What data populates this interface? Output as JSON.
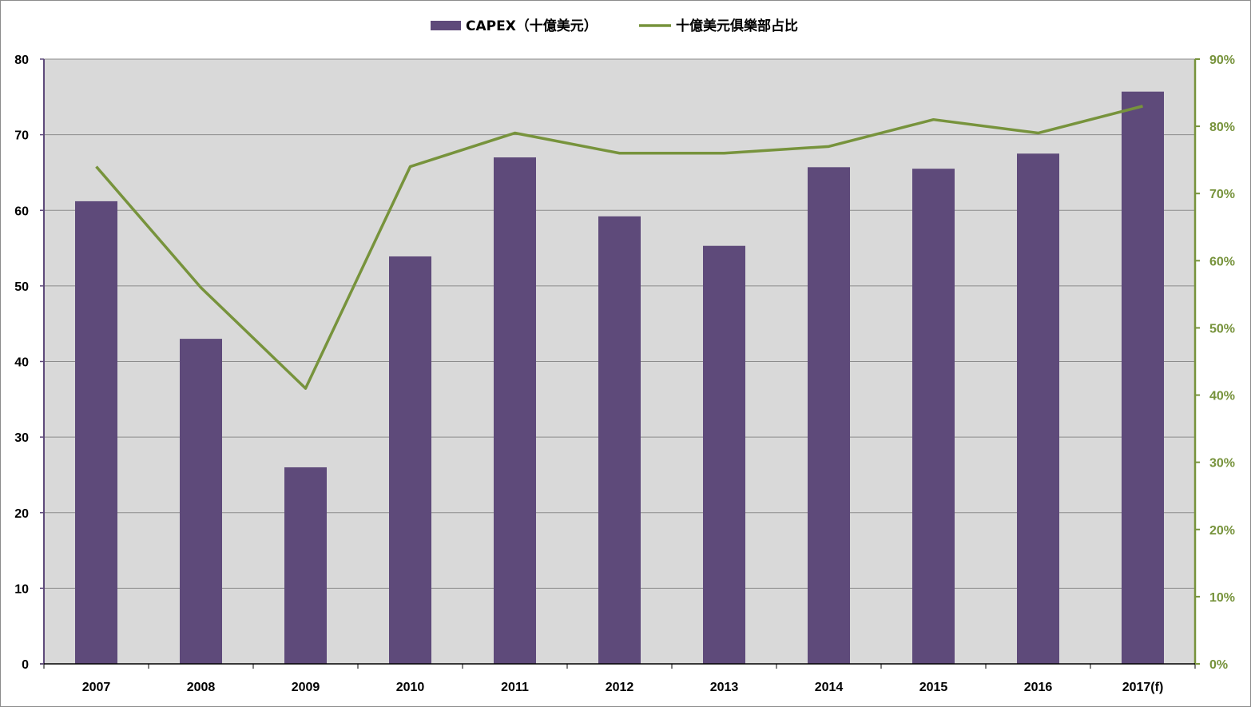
{
  "chart_data": {
    "type": "bar",
    "categories": [
      "2007",
      "2008",
      "2009",
      "2010",
      "2011",
      "2012",
      "2013",
      "2014",
      "2015",
      "2016",
      "2017(f)"
    ],
    "series": [
      {
        "name": "CAPEX（十億美元）",
        "type": "bar",
        "axis": "left",
        "color": "#5e4a7a",
        "values": [
          61.2,
          43.0,
          26.0,
          53.9,
          67.0,
          59.2,
          55.3,
          65.7,
          65.5,
          67.5,
          75.7
        ]
      },
      {
        "name": "十億美元俱樂部占比",
        "type": "line",
        "axis": "right",
        "color": "#77933c",
        "values": [
          0.74,
          0.56,
          0.41,
          0.74,
          0.79,
          0.76,
          0.76,
          0.77,
          0.81,
          0.79,
          0.83
        ]
      }
    ],
    "y_left": {
      "min": 0,
      "max": 80,
      "step": 10,
      "ticks": [
        "0",
        "10",
        "20",
        "30",
        "40",
        "50",
        "60",
        "70",
        "80"
      ]
    },
    "y_right": {
      "min": 0,
      "max": 0.9,
      "step": 0.1,
      "ticks": [
        "0%",
        "10%",
        "20%",
        "30%",
        "40%",
        "50%",
        "60%",
        "70%",
        "80%",
        "90%"
      ]
    },
    "grid": true,
    "plot_background": "#d9d9d9",
    "grid_color": "#8c8c8c",
    "left_axis_color": "#5e4a7a",
    "right_axis_color": "#77933c",
    "legend_position": "top-center",
    "title": "",
    "xlabel": "",
    "ylabel": ""
  }
}
